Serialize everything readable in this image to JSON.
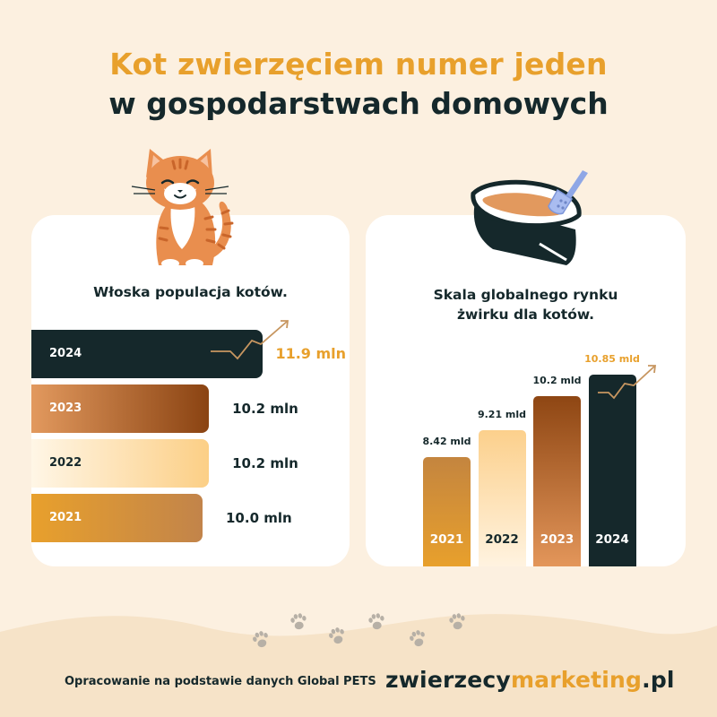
{
  "title": {
    "line1": "Kot zwierzęciem numer jeden",
    "line2": "w gospodarstwach domowych"
  },
  "colors": {
    "background": "#fcf0e0",
    "accent": "#e8a02c",
    "dark": "#15282b"
  },
  "chart_data": [
    {
      "type": "bar",
      "orientation": "horizontal",
      "title": "Włoska populacja kotów.",
      "categories": [
        "2024",
        "2023",
        "2022",
        "2021"
      ],
      "values": [
        11.9,
        10.2,
        10.2,
        10.0
      ],
      "value_labels": [
        "11.9 mln",
        "10.2 mln",
        "10.2 mln",
        "10.0 mln"
      ],
      "unit": "mln",
      "highlight": "2024"
    },
    {
      "type": "bar",
      "orientation": "vertical",
      "title": "Skala globalnego rynku żwirku dla kotów.",
      "categories": [
        "2021",
        "2022",
        "2023",
        "2024"
      ],
      "values": [
        8.42,
        9.21,
        10.2,
        10.85
      ],
      "value_labels": [
        "8.42 mld",
        "9.21 mld",
        "10.2 mld",
        "10.85 mld"
      ],
      "unit": "mld",
      "highlight": "2024"
    }
  ],
  "footer": {
    "source": "Opracowanie na podstawie danych Global PETS",
    "brand_part1": "zwierzecy",
    "brand_part2": "marketing",
    "brand_part3": ".pl"
  },
  "icons": [
    "cat-illustration",
    "litter-box-illustration",
    "paw-print-icon",
    "trend-arrow-icon"
  ]
}
